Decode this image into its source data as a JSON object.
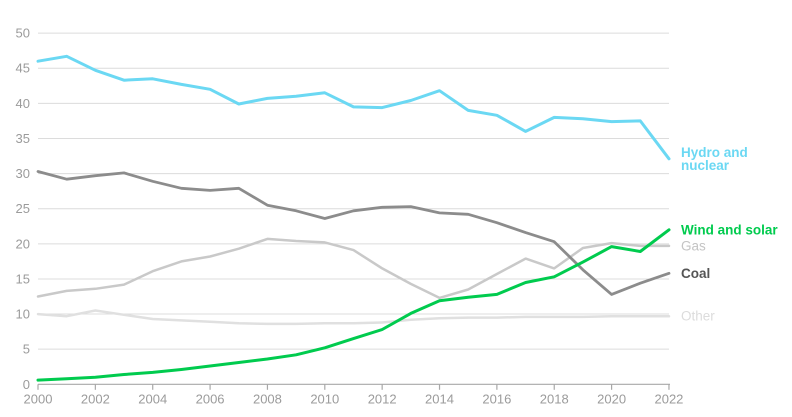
{
  "chart_data": {
    "type": "line",
    "title": "",
    "xlabel": "",
    "ylabel": "",
    "x": [
      2000,
      2001,
      2002,
      2003,
      2004,
      2005,
      2006,
      2007,
      2008,
      2009,
      2010,
      2011,
      2012,
      2013,
      2014,
      2015,
      2016,
      2017,
      2018,
      2019,
      2020,
      2021,
      2022
    ],
    "series": [
      {
        "name": "other",
        "label_lines": [
          "Other"
        ],
        "color": "#e0e0e0",
        "label_color": "#dcdcdc",
        "values": [
          10.0,
          9.7,
          10.5,
          9.9,
          9.3,
          9.1,
          8.9,
          8.7,
          8.6,
          8.6,
          8.7,
          8.7,
          8.8,
          9.2,
          9.4,
          9.5,
          9.5,
          9.6,
          9.6,
          9.6,
          9.7,
          9.7,
          9.7
        ]
      },
      {
        "name": "gas",
        "label_lines": [
          "Gas"
        ],
        "color": "#c9c9c9",
        "label_color": "#c4c4c4",
        "values": [
          12.5,
          13.3,
          13.6,
          14.2,
          16.1,
          17.5,
          18.2,
          19.3,
          20.7,
          20.4,
          20.2,
          19.1,
          16.5,
          14.3,
          12.3,
          13.5,
          15.7,
          17.9,
          16.5,
          19.4,
          20.1,
          19.7,
          19.7
        ]
      },
      {
        "name": "coal",
        "label_lines": [
          "Coal"
        ],
        "color": "#8c8c8c",
        "label_color": "#555555",
        "values": [
          30.3,
          29.2,
          29.7,
          30.1,
          28.9,
          27.9,
          27.6,
          27.9,
          25.5,
          24.7,
          23.6,
          24.7,
          25.2,
          25.3,
          24.4,
          24.2,
          23.0,
          21.6,
          20.3,
          16.3,
          12.8,
          14.4,
          15.8
        ]
      },
      {
        "name": "hydro_nuclear",
        "label_lines": [
          "Hydro and",
          "nuclear"
        ],
        "color": "#6bd8f3",
        "label_color": "#6bd8f3",
        "values": [
          46.0,
          46.7,
          44.7,
          43.3,
          43.5,
          42.7,
          42.0,
          39.9,
          40.7,
          41.0,
          41.5,
          39.5,
          39.4,
          40.4,
          41.8,
          39.0,
          38.3,
          36.0,
          38.0,
          37.8,
          37.4,
          37.5,
          32.1
        ]
      },
      {
        "name": "wind_solar",
        "label_lines": [
          "Wind and solar"
        ],
        "color": "#00cb4e",
        "label_color": "#00cb4e",
        "values": [
          0.6,
          0.8,
          1.0,
          1.4,
          1.7,
          2.1,
          2.6,
          3.1,
          3.6,
          4.2,
          5.2,
          6.5,
          7.8,
          10.1,
          11.9,
          12.4,
          12.8,
          14.5,
          15.3,
          17.4,
          19.6,
          18.9,
          22.0
        ]
      }
    ],
    "ylim": [
      0,
      50
    ],
    "y_ticks": [
      0,
      5,
      10,
      15,
      20,
      25,
      30,
      35,
      40,
      45,
      50
    ],
    "x_ticks": [
      "2000",
      "2002",
      "2004",
      "2006",
      "2008",
      "2010",
      "2012",
      "2014",
      "2016",
      "2018",
      "2020",
      "2022"
    ],
    "grid": "horizontal",
    "legend_position": "right-end-labels"
  },
  "colors": {
    "grid": "#dcdcdc",
    "axis": "#a8a8a8",
    "tick_label": "#9b9b9b",
    "background": "#ffffff"
  }
}
